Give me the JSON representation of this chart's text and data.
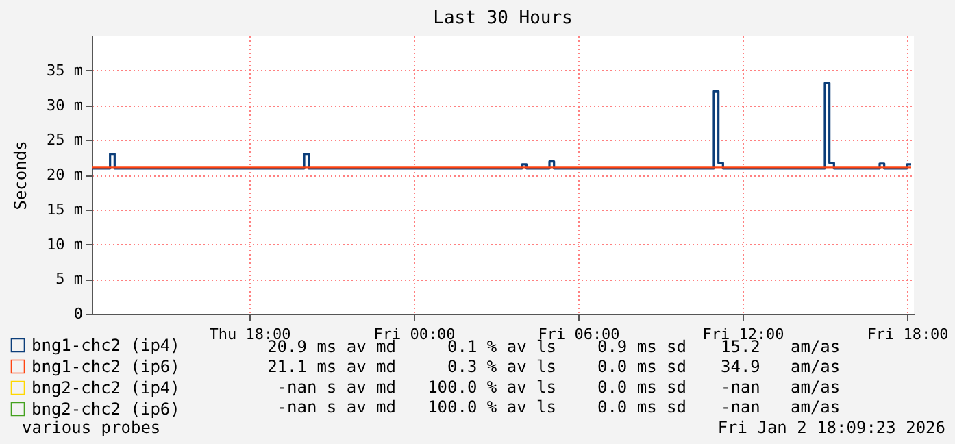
{
  "chart_data": {
    "type": "step",
    "title": "Last 30 Hours",
    "ylabel": "Seconds",
    "xlim": [
      "2026-01-01T12:15",
      "2026-01-02T18:15"
    ],
    "xticks": [
      {
        "value": "2026-01-01T18:00",
        "label": "Thu 18:00"
      },
      {
        "value": "2026-01-02T00:00",
        "label": "Fri 00:00"
      },
      {
        "value": "2026-01-02T06:00",
        "label": "Fri 06:00"
      },
      {
        "value": "2026-01-02T12:00",
        "label": "Fri 12:00"
      },
      {
        "value": "2026-01-02T18:00",
        "label": "Fri 18:00"
      }
    ],
    "ylim": [
      0,
      40
    ],
    "yticks": [
      {
        "value": 0,
        "label": "0"
      },
      {
        "value": 5,
        "label": "5 m"
      },
      {
        "value": 10,
        "label": "10 m"
      },
      {
        "value": 15,
        "label": "15 m"
      },
      {
        "value": 20,
        "label": "20 m"
      },
      {
        "value": 25,
        "label": "25 m"
      },
      {
        "value": 30,
        "label": "30 m"
      },
      {
        "value": 35,
        "label": "35 m"
      }
    ],
    "grid": true,
    "legend": "bottom",
    "series": [
      {
        "name": "bng1-chc2 (ip4)",
        "color": "#0c3e7a",
        "x": [
          "2026-01-01T12:15",
          "2026-01-01T12:55",
          "2026-01-01T13:05",
          "2026-01-01T20:00",
          "2026-01-01T20:10",
          "2026-01-02T03:57",
          "2026-01-02T04:07",
          "2026-01-02T04:57",
          "2026-01-02T05:07",
          "2026-01-02T10:57",
          "2026-01-02T11:07",
          "2026-01-02T11:17",
          "2026-01-02T15:00",
          "2026-01-02T15:10",
          "2026-01-02T15:20",
          "2026-01-02T17:00",
          "2026-01-02T17:10",
          "2026-01-02T18:00",
          "2026-01-02T18:09"
        ],
        "values": [
          20.9,
          23.0,
          20.9,
          23.0,
          20.9,
          21.5,
          20.9,
          21.9,
          20.9,
          32.0,
          21.7,
          20.9,
          33.2,
          21.7,
          20.9,
          21.6,
          20.9,
          21.5,
          21.5
        ]
      },
      {
        "name": "bng1-chc2 (ip6)",
        "color": "#ff4411",
        "x": [
          "2026-01-01T12:15",
          "2026-01-02T18:09"
        ],
        "values": [
          21.1,
          21.1
        ]
      },
      {
        "name": "bng2-chc2 (ip4)",
        "color": "#ffd700"
      },
      {
        "name": "bng2-chc2 (ip6)",
        "color": "#44a11f"
      }
    ],
    "annotations": [
      "20.9 ms av md",
      "0.1 % av ls",
      "0.9 ms sd",
      "15.2",
      "am/as",
      "21.1 ms av md",
      "0.3 % av ls",
      "0.0 ms sd",
      "34.9",
      "am/as",
      "-nan  s av md",
      "100.0 % av ls",
      "0.0 ms sd",
      "-nan",
      "am/as",
      "-nan  s av md",
      "100.0 % av ls",
      "0.0 ms sd",
      "-nan",
      "am/as",
      "various probes",
      "Fri Jan  2 18:09:23 2026"
    ]
  }
}
